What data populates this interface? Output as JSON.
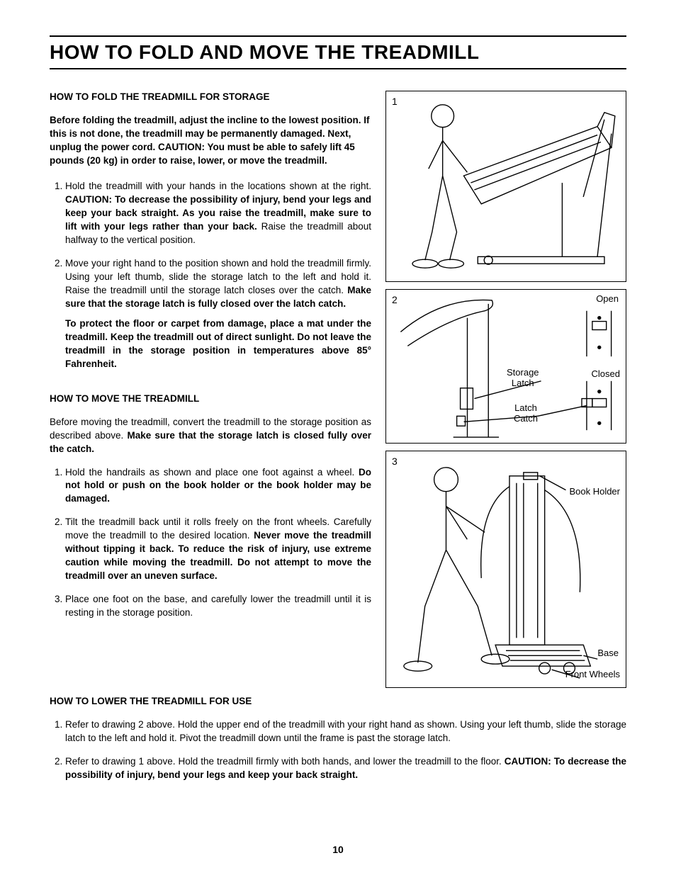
{
  "title": "HOW TO FOLD AND MOVE THE TREADMILL",
  "page_number": "10",
  "fold": {
    "heading": "HOW TO FOLD THE TREADMILL FOR STORAGE",
    "intro": "Before folding the treadmill, adjust the incline to the lowest position. If this is not done, the treadmill may be permanently damaged. Next, unplug the power cord. CAUTION: You must be able to safely lift 45 pounds (20 kg) in order to raise, lower, or move the treadmill.",
    "step1_a": "Hold the treadmill with your hands in the locations shown at the right. ",
    "step1_b": "CAUTION: To decrease the possibility of injury, bend your legs and keep your back straight. As you raise the treadmill, make sure to lift with your legs rather than your back.",
    "step1_c": " Raise the treadmill about halfway to the vertical position.",
    "step2_a": "Move your right hand to the position shown and hold the treadmill firmly. Using your left thumb, slide the storage latch to the left and hold it. Raise the treadmill until the storage latch closes over the catch. ",
    "step2_b": "Make sure that the storage latch is fully closed over the latch catch.",
    "step2_c": "To protect the floor or carpet from damage, place a mat under the treadmill. Keep the treadmill out of direct sunlight. Do not leave the treadmill in the storage position in temperatures above 85° Fahrenheit."
  },
  "move": {
    "heading": "HOW TO MOVE THE TREADMILL",
    "intro_a": "Before moving the treadmill, convert the treadmill to the storage position as described above. ",
    "intro_b": "Make sure that the storage latch is closed fully over the catch.",
    "step1_a": "Hold the handrails as shown and place one foot against a wheel. ",
    "step1_b": "Do not hold or push on the book holder or the book holder may be damaged.",
    "step2_a": "Tilt the treadmill back until it rolls freely on the front wheels. Carefully move the treadmill to the desired location. ",
    "step2_b": "Never move the treadmill without tipping it back. To reduce the risk of injury, use extreme caution while moving the treadmill. Do not attempt to move the treadmill over an uneven surface.",
    "step3": "Place one foot on the base, and carefully lower the treadmill until it is resting in the storage position."
  },
  "lower": {
    "heading": "HOW TO LOWER THE TREADMILL FOR USE",
    "step1": "Refer to drawing 2 above. Hold the upper end of the treadmill with your right hand as shown. Using your left thumb, slide the storage latch to the left and hold it. Pivot the treadmill down until the frame is past the storage latch.",
    "step2_a": "Refer to drawing 1 above. Hold the treadmill firmly with both hands, and lower the treadmill to the floor. ",
    "step2_b": "CAUTION: To decrease the possibility of injury, bend your legs and keep your back straight."
  },
  "figures": {
    "f1": {
      "num": "1"
    },
    "f2": {
      "num": "2",
      "open": "Open",
      "closed": "Closed",
      "storage": "Storage\nLatch",
      "catch": "Latch\nCatch"
    },
    "f3": {
      "num": "3",
      "book": "Book Holder",
      "base": "Base",
      "front": "Front Wheels"
    }
  }
}
